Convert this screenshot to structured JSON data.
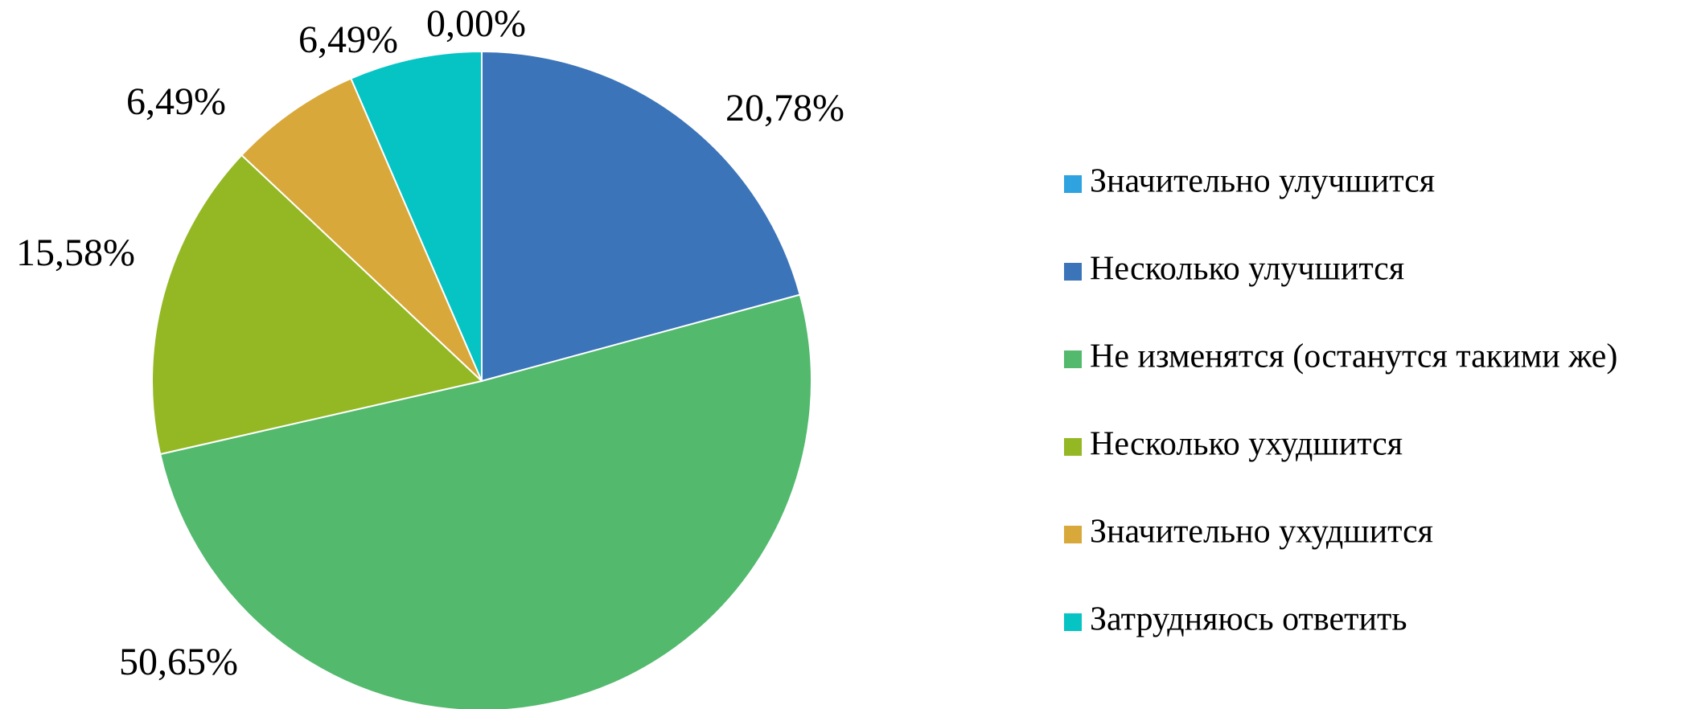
{
  "chart_data": {
    "type": "pie",
    "categories": [
      "Значительно улучшится",
      "Несколько улучшится",
      "Не изменятся (останутся такими же)",
      "Несколько ухудшится",
      "Значительно ухудшится",
      "Затрудняюсь ответить"
    ],
    "values": [
      0,
      20.78,
      50.65,
      15.58,
      6.49,
      6.49
    ],
    "value_labels": [
      "0,00%",
      "20,78%",
      "50,65%",
      "15,58%",
      "6,49%",
      "6,49%"
    ],
    "colors": [
      "#2ea3df",
      "#3c74b9",
      "#52b96d",
      "#93b824",
      "#d9a83a",
      "#06c4c4"
    ],
    "legend": "right"
  }
}
